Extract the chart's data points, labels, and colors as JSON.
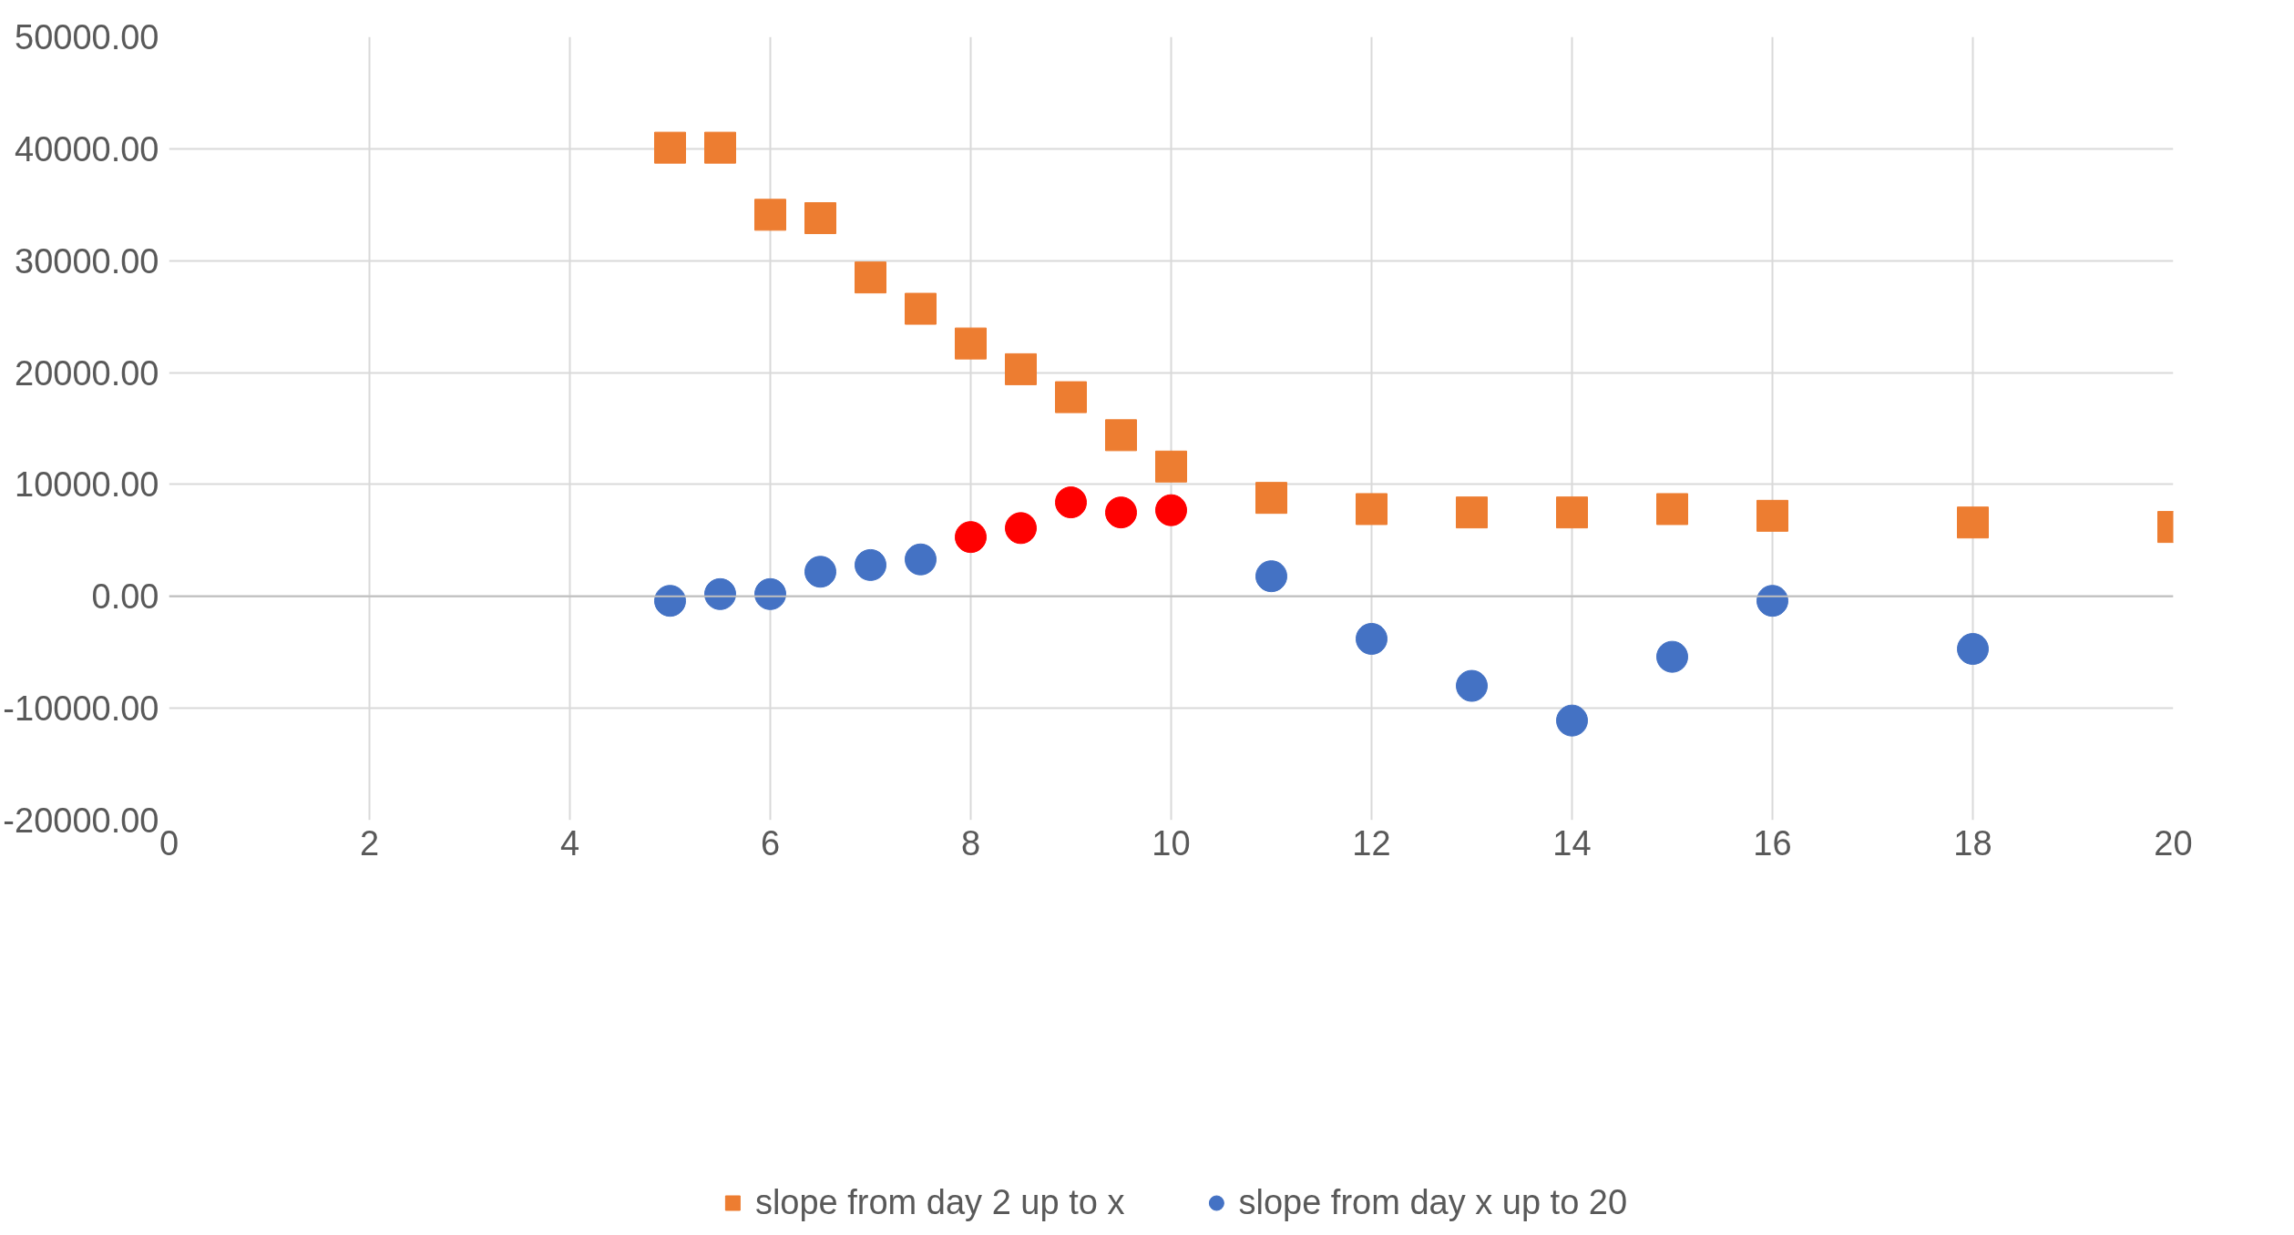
{
  "chart_data": {
    "type": "scatter",
    "xlim": [
      0,
      20
    ],
    "xticks": [
      0,
      2,
      4,
      6,
      8,
      10,
      12,
      14,
      16,
      18,
      20
    ],
    "ylim": [
      -20000,
      50000
    ],
    "yticks": [
      {
        "value": -20000,
        "label": "-20000.00"
      },
      {
        "value": -10000,
        "label": "-10000.00"
      },
      {
        "value": 0,
        "label": "0.00"
      },
      {
        "value": 10000,
        "label": "10000.00"
      },
      {
        "value": 20000,
        "label": "20000.00"
      },
      {
        "value": 30000,
        "label": "30000.00"
      },
      {
        "value": 40000,
        "label": "40000.00"
      },
      {
        "value": 50000,
        "label": "50000.00"
      }
    ],
    "grid": true,
    "legend": "bottom",
    "series": [
      {
        "name": "slope from day 2 up to x",
        "color": "#ed7d31",
        "marker": "square",
        "x": [
          5,
          5.5,
          6,
          6.5,
          7,
          7.5,
          8,
          8.5,
          9,
          9.5,
          10,
          11,
          12,
          13,
          14,
          15,
          16,
          18,
          20
        ],
        "values": [
          40100,
          40100,
          34100,
          33800,
          28500,
          25700,
          22600,
          20300,
          17800,
          14400,
          11600,
          8800,
          7800,
          7500,
          7500,
          7800,
          7200,
          6600,
          6200
        ]
      },
      {
        "name": "slope from day x up to 20",
        "color": "#4472c4",
        "marker": "circle",
        "x": [
          5,
          5.5,
          6,
          6.5,
          7,
          7.5,
          11,
          12,
          13,
          14,
          15,
          16,
          18
        ],
        "values": [
          -400,
          200,
          200,
          2200,
          2800,
          3300,
          1800,
          -3800,
          -8000,
          -11100,
          -5400,
          -400,
          -4700
        ]
      },
      {
        "color": "#ff0000",
        "marker": "circle",
        "x": [
          8,
          8.5,
          9,
          9.5,
          10
        ],
        "values": [
          5300,
          6100,
          8400,
          7500,
          7700
        ]
      }
    ]
  }
}
